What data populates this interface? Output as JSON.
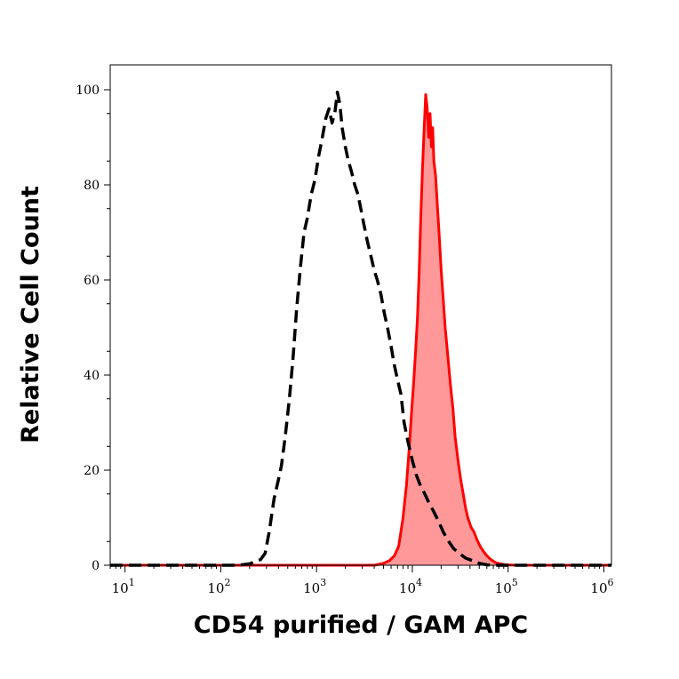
{
  "chart_data": {
    "type": "area",
    "title": "",
    "xlabel": "CD54 purified / GAM APC",
    "ylabel": "Relative Cell Count",
    "xscale": "log",
    "xlim": [
      7,
      1200000.0
    ],
    "ylim": [
      0,
      100
    ],
    "grid": false,
    "legend": "none",
    "yticks": [
      0,
      20,
      40,
      60,
      80,
      100
    ],
    "yticklabels": [
      "0",
      "20",
      "40",
      "60",
      "80",
      "100"
    ],
    "xticks": [
      {
        "value": 10,
        "base": "10",
        "exp": "1"
      },
      {
        "value": 100,
        "base": "10",
        "exp": "2"
      },
      {
        "value": 1000,
        "base": "10",
        "exp": "3"
      },
      {
        "value": 10000,
        "base": "10",
        "exp": "4"
      },
      {
        "value": 100000,
        "base": "10",
        "exp": "5"
      },
      {
        "value": 1000000,
        "base": "10",
        "exp": "6"
      }
    ],
    "series": [
      {
        "style": "dashed",
        "color": "#000000",
        "fill": "none",
        "points": [
          [
            7,
            0
          ],
          [
            150,
            0
          ],
          [
            200,
            0.3
          ],
          [
            230,
            0.8
          ],
          [
            260,
            1.2
          ],
          [
            290,
            2.5
          ],
          [
            320,
            7
          ],
          [
            360,
            14
          ],
          [
            400,
            18
          ],
          [
            430,
            21
          ],
          [
            470,
            27
          ],
          [
            520,
            35
          ],
          [
            570,
            44
          ],
          [
            620,
            54
          ],
          [
            680,
            63
          ],
          [
            740,
            70
          ],
          [
            800,
            73
          ],
          [
            880,
            78
          ],
          [
            960,
            81
          ],
          [
            1050,
            86
          ],
          [
            1150,
            90
          ],
          [
            1250,
            94
          ],
          [
            1350,
            96
          ],
          [
            1450,
            93
          ],
          [
            1550,
            95
          ],
          [
            1650,
            99.5
          ],
          [
            1750,
            97
          ],
          [
            1850,
            92
          ],
          [
            2000,
            88
          ],
          [
            2150,
            85
          ],
          [
            2300,
            83
          ],
          [
            2500,
            80
          ],
          [
            2700,
            78
          ],
          [
            2900,
            75
          ],
          [
            3100,
            72
          ],
          [
            3400,
            68
          ],
          [
            3700,
            65
          ],
          [
            4000,
            62
          ],
          [
            4300,
            60
          ],
          [
            4700,
            57
          ],
          [
            5100,
            53
          ],
          [
            5500,
            50
          ],
          [
            6000,
            46
          ],
          [
            6500,
            42
          ],
          [
            7000,
            39
          ],
          [
            7600,
            36
          ],
          [
            8200,
            30
          ],
          [
            9000,
            26
          ],
          [
            10000,
            22
          ],
          [
            11000,
            19
          ],
          [
            12000,
            17
          ],
          [
            13500,
            15
          ],
          [
            15000,
            13
          ],
          [
            17000,
            11
          ],
          [
            19000,
            9
          ],
          [
            21000,
            7
          ],
          [
            24000,
            5
          ],
          [
            27000,
            3.5
          ],
          [
            31000,
            2.5
          ],
          [
            36000,
            1.5
          ],
          [
            42000,
            1
          ],
          [
            50000,
            0.4
          ],
          [
            60000,
            0.1
          ],
          [
            80000,
            0
          ],
          [
            1200000,
            0
          ]
        ]
      },
      {
        "style": "solid",
        "color": "#ff0000",
        "fill": "#ff9999",
        "points": [
          [
            7,
            0
          ],
          [
            4000,
            0
          ],
          [
            5000,
            0.4
          ],
          [
            5800,
            1
          ],
          [
            6500,
            2
          ],
          [
            7200,
            4
          ],
          [
            8000,
            10
          ],
          [
            8700,
            17
          ],
          [
            9300,
            25
          ],
          [
            9800,
            32
          ],
          [
            10300,
            38
          ],
          [
            10800,
            45
          ],
          [
            11300,
            52
          ],
          [
            11800,
            62
          ],
          [
            12300,
            74
          ],
          [
            12800,
            84
          ],
          [
            13300,
            92
          ],
          [
            13800,
            99
          ],
          [
            14300,
            96
          ],
          [
            14800,
            90
          ],
          [
            15300,
            95
          ],
          [
            15800,
            88
          ],
          [
            16300,
            92
          ],
          [
            16800,
            85
          ],
          [
            17500,
            82
          ],
          [
            18200,
            76
          ],
          [
            19000,
            70
          ],
          [
            20000,
            62
          ],
          [
            21000,
            56
          ],
          [
            22000,
            50
          ],
          [
            23500,
            44
          ],
          [
            25000,
            38
          ],
          [
            26500,
            33
          ],
          [
            28000,
            27
          ],
          [
            30000,
            22
          ],
          [
            32000,
            18
          ],
          [
            34000,
            15
          ],
          [
            36000,
            12
          ],
          [
            38000,
            10
          ],
          [
            41000,
            8
          ],
          [
            44000,
            7
          ],
          [
            47000,
            5.5
          ],
          [
            51000,
            4
          ],
          [
            55000,
            3
          ],
          [
            60000,
            2
          ],
          [
            66000,
            1.2
          ],
          [
            73000,
            0.6
          ],
          [
            82000,
            0.3
          ],
          [
            95000,
            0.1
          ],
          [
            120000,
            0
          ],
          [
            1200000,
            0
          ]
        ]
      }
    ]
  }
}
